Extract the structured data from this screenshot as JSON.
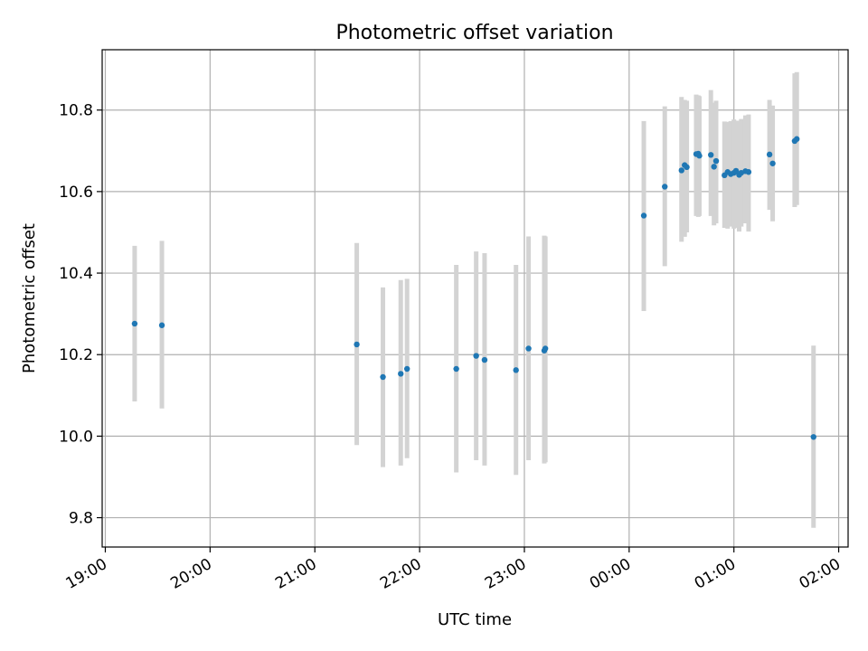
{
  "chart_data": {
    "type": "scatter",
    "title": "Photometric offset variation",
    "xlabel": "UTC time",
    "ylabel": "Photometric offset",
    "x_ticks": [
      "19:00",
      "20:00",
      "21:00",
      "22:00",
      "23:00",
      "00:00",
      "01:00",
      "02:00"
    ],
    "y_ticks": [
      "9.8",
      "10.0",
      "10.2",
      "10.4",
      "10.6",
      "10.8"
    ],
    "x_unit": "hours",
    "xlim": [
      18.97,
      26.09
    ],
    "ylim": [
      9.728,
      10.948
    ],
    "grid": true,
    "point_color": "#1f77b4",
    "errorbar_color": "#d3d3d3",
    "points": [
      {
        "x": 19.28,
        "y": 10.276,
        "low": 10.085,
        "high": 10.467
      },
      {
        "x": 19.54,
        "y": 10.272,
        "low": 10.068,
        "high": 10.479
      },
      {
        "x": 21.4,
        "y": 10.225,
        "low": 9.978,
        "high": 10.474
      },
      {
        "x": 21.65,
        "y": 10.145,
        "low": 9.924,
        "high": 10.365
      },
      {
        "x": 21.82,
        "y": 10.153,
        "low": 9.928,
        "high": 10.383
      },
      {
        "x": 21.88,
        "y": 10.165,
        "low": 9.946,
        "high": 10.386
      },
      {
        "x": 22.35,
        "y": 10.165,
        "low": 9.911,
        "high": 10.42
      },
      {
        "x": 22.54,
        "y": 10.197,
        "low": 9.941,
        "high": 10.453
      },
      {
        "x": 22.62,
        "y": 10.187,
        "low": 9.928,
        "high": 10.449
      },
      {
        "x": 22.92,
        "y": 10.162,
        "low": 9.905,
        "high": 10.42
      },
      {
        "x": 23.04,
        "y": 10.215,
        "low": 9.941,
        "high": 10.49
      },
      {
        "x": 23.19,
        "y": 10.21,
        "low": 9.933,
        "high": 10.492
      },
      {
        "x": 23.2,
        "y": 10.215,
        "low": 9.936,
        "high": 10.49
      },
      {
        "x": 24.14,
        "y": 10.541,
        "low": 10.307,
        "high": 10.773
      },
      {
        "x": 24.34,
        "y": 10.612,
        "low": 10.417,
        "high": 10.809
      },
      {
        "x": 24.5,
        "y": 10.652,
        "low": 10.477,
        "high": 10.832
      },
      {
        "x": 24.53,
        "y": 10.665,
        "low": 10.489,
        "high": 10.825
      },
      {
        "x": 24.55,
        "y": 10.66,
        "low": 10.5,
        "high": 10.823
      },
      {
        "x": 24.64,
        "y": 10.692,
        "low": 10.54,
        "high": 10.838
      },
      {
        "x": 24.66,
        "y": 10.693,
        "low": 10.538,
        "high": 10.836
      },
      {
        "x": 24.67,
        "y": 10.688,
        "low": 10.54,
        "high": 10.834
      },
      {
        "x": 24.78,
        "y": 10.69,
        "low": 10.54,
        "high": 10.849
      },
      {
        "x": 24.81,
        "y": 10.661,
        "low": 10.517,
        "high": 10.818
      },
      {
        "x": 24.83,
        "y": 10.675,
        "low": 10.522,
        "high": 10.823
      },
      {
        "x": 24.91,
        "y": 10.64,
        "low": 10.511,
        "high": 10.772
      },
      {
        "x": 24.94,
        "y": 10.648,
        "low": 10.509,
        "high": 10.771
      },
      {
        "x": 24.97,
        "y": 10.643,
        "low": 10.514,
        "high": 10.773
      },
      {
        "x": 25.0,
        "y": 10.646,
        "low": 10.509,
        "high": 10.777
      },
      {
        "x": 25.02,
        "y": 10.651,
        "low": 10.511,
        "high": 10.774
      },
      {
        "x": 25.05,
        "y": 10.641,
        "low": 10.502,
        "high": 10.774
      },
      {
        "x": 25.07,
        "y": 10.646,
        "low": 10.514,
        "high": 10.778
      },
      {
        "x": 25.11,
        "y": 10.65,
        "low": 10.522,
        "high": 10.787
      },
      {
        "x": 25.14,
        "y": 10.648,
        "low": 10.502,
        "high": 10.789
      },
      {
        "x": 25.34,
        "y": 10.691,
        "low": 10.555,
        "high": 10.825
      },
      {
        "x": 25.37,
        "y": 10.669,
        "low": 10.527,
        "high": 10.811
      },
      {
        "x": 25.58,
        "y": 10.724,
        "low": 10.562,
        "high": 10.89
      },
      {
        "x": 25.6,
        "y": 10.729,
        "low": 10.567,
        "high": 10.893
      },
      {
        "x": 25.76,
        "y": 9.998,
        "low": 9.775,
        "high": 10.222
      }
    ]
  }
}
